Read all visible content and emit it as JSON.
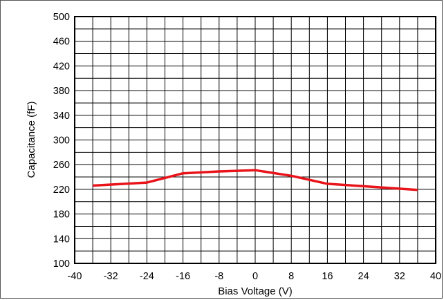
{
  "chart_data": {
    "type": "line",
    "xlabel": "Bias Voltage (V)",
    "ylabel": "Capacitance (fF)",
    "xlim": [
      -40,
      40
    ],
    "ylim": [
      100,
      500
    ],
    "xticks": [
      -40,
      -32,
      -24,
      -16,
      -8,
      0,
      8,
      16,
      24,
      32,
      40
    ],
    "yticks": [
      100,
      140,
      180,
      220,
      260,
      300,
      340,
      380,
      420,
      460,
      500
    ],
    "x_tick_labels": [
      "-40",
      "-32",
      "-24",
      "-16",
      "-8",
      "0",
      "8",
      "16",
      "24",
      "32",
      "40"
    ],
    "y_tick_labels": [
      "100",
      "140",
      "180",
      "220",
      "260",
      "300",
      "340",
      "380",
      "420",
      "460",
      "500"
    ],
    "x_minor_step": 4,
    "y_minor_step": 20,
    "grid": true,
    "series": [
      {
        "color": "#e8141a",
        "x": [
          -36,
          -24,
          -16,
          -8,
          0,
          8,
          16,
          24,
          36
        ],
        "y": [
          226,
          231,
          246,
          249,
          251,
          242,
          229,
          225,
          219
        ]
      }
    ]
  }
}
